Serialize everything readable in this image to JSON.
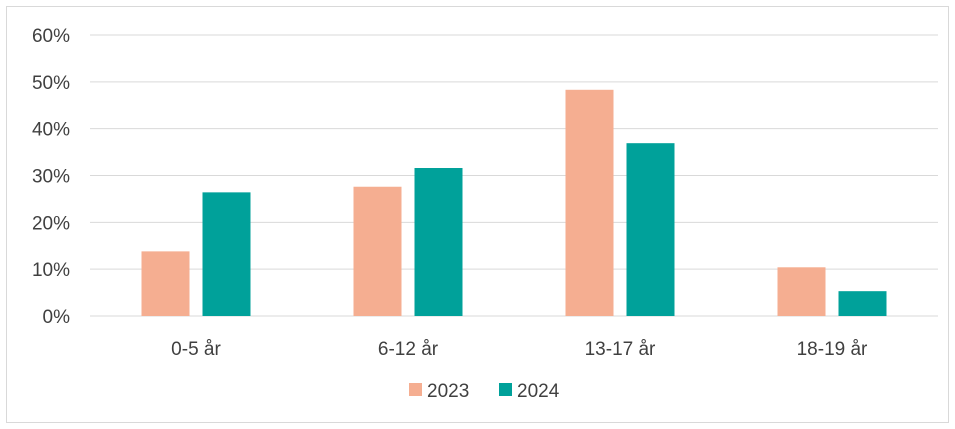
{
  "chart_data": {
    "type": "bar",
    "categories": [
      "0-5 år",
      "6-12 år",
      "13-17 år",
      "18-19 år"
    ],
    "series": [
      {
        "name": "2023",
        "color": "#F5AE91",
        "values": [
          13.8,
          27.6,
          48.3,
          10.4
        ]
      },
      {
        "name": "2024",
        "color": "#00A19A",
        "values": [
          26.4,
          31.6,
          36.9,
          5.3
        ]
      }
    ],
    "yticks": [
      "0%",
      "10%",
      "20%",
      "30%",
      "40%",
      "50%",
      "60%"
    ],
    "ylim": [
      0,
      60
    ],
    "grid": true,
    "legend_position": "bottom",
    "title": "",
    "xlabel": "",
    "ylabel": ""
  }
}
